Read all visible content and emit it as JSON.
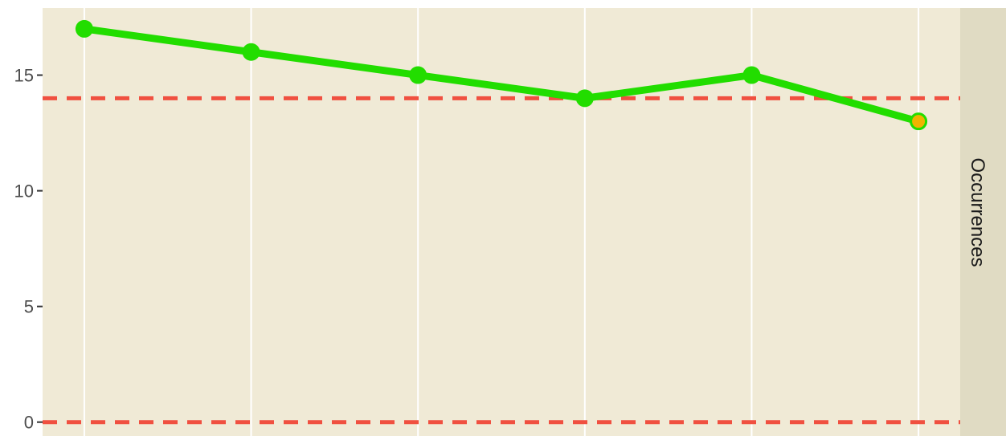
{
  "chart_data": {
    "type": "line",
    "x": [
      1,
      2,
      3,
      4,
      5,
      6
    ],
    "series": [
      {
        "values": [
          17,
          16,
          15,
          14,
          15,
          13
        ],
        "color": "#22dd00"
      }
    ],
    "highlight_point": {
      "index": 5,
      "fill": "#f0b400",
      "stroke": "#22dd00"
    },
    "reference_lines": [
      {
        "y": 14,
        "color": "#f05040",
        "style": "dashed"
      },
      {
        "y": 0,
        "color": "#f05040",
        "style": "dashed"
      }
    ],
    "y_ticks": [
      0,
      5,
      10,
      15
    ],
    "y_tick_labels": [
      "0",
      "5",
      "10",
      "15"
    ],
    "ylim": [
      -0.6,
      17.9
    ],
    "xlim": [
      0.75,
      6.25
    ],
    "grid": {
      "vertical_major": true,
      "horizontal": false
    },
    "facet_label": "Occurrences",
    "title": "",
    "xlabel": "",
    "ylabel": "",
    "colors": {
      "panel_background": "#f0ead6",
      "strip_background": "#e0dbc3",
      "grid": "#ffffff",
      "tick_text": "#4d4d4d"
    }
  }
}
